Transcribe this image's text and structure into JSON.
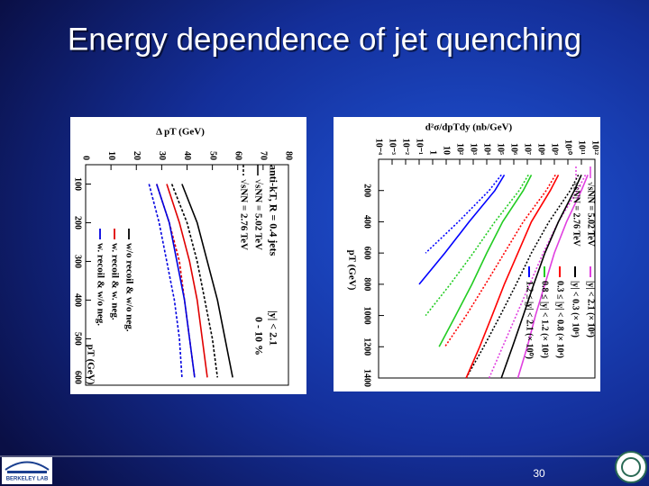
{
  "title": "Energy dependence of jet quenching",
  "page_number": 30,
  "logo_text": "BERKELEY LAB",
  "chart_data": [
    {
      "type": "line",
      "y_label": "Δ pT (GeV)",
      "x_label": "pT (GeV)",
      "annotations": [
        "anti-kT, R = 0.4 jets",
        "|y| < 2.1",
        "0 - 10 %"
      ],
      "line_styles": [
        {
          "label": "√sNN = 5.02 TeV",
          "dash": "none"
        },
        {
          "label": "√sNN = 2.76 TeV",
          "dash": "3,2"
        }
      ],
      "x": [
        100,
        200,
        300,
        400,
        500,
        600
      ],
      "xlim": [
        50,
        620
      ],
      "xticks": [
        100,
        200,
        300,
        400,
        500,
        600
      ],
      "ylim": [
        0,
        80
      ],
      "yticks": [
        0,
        10,
        20,
        30,
        40,
        50,
        60,
        70,
        80
      ],
      "series": [
        {
          "name": "w/o recoil & w/o neg.",
          "color": "#000000",
          "values": [
            38,
            44,
            48,
            52,
            55,
            58
          ],
          "dashed_values": [
            34,
            40,
            44,
            47,
            50,
            52
          ]
        },
        {
          "name": "w. recoil & w. neg.",
          "color": "#e00000",
          "values": [
            32,
            37,
            41,
            44,
            46,
            48
          ],
          "dashed_values": [
            28,
            33,
            37,
            39,
            41,
            43
          ]
        },
        {
          "name": "w. recoil & w/o neg.",
          "color": "#0000e0",
          "values": [
            28,
            33,
            36,
            39,
            41,
            43
          ],
          "dashed_values": [
            25,
            29,
            32,
            35,
            37,
            38
          ]
        }
      ]
    },
    {
      "type": "line",
      "y_label": "d²σ/dpTdy (nb/GeV)",
      "x_label": "pT (GeV)",
      "log_y": true,
      "line_styles": [
        {
          "label": "√sNN = 5.02 TeV",
          "dash": "none"
        },
        {
          "label": "√sNN = 2.76 TeV",
          "dash": "2,2"
        }
      ],
      "x": [
        100,
        200,
        400,
        600,
        800,
        1000,
        1200,
        1400
      ],
      "xlim": [
        0,
        1400
      ],
      "xticks": [
        200,
        400,
        600,
        800,
        1000,
        1200,
        1400
      ],
      "ylim": [
        0.0001,
        1000000000000
      ],
      "yticks": [
        {
          "value": 0.0001,
          "label": "10⁻⁴"
        },
        {
          "value": 0.001,
          "label": "10⁻³"
        },
        {
          "value": 0.01,
          "label": "10⁻²"
        },
        {
          "value": 0.1,
          "label": "10⁻¹"
        },
        1,
        10,
        {
          "value": 100,
          "label": "10²"
        },
        {
          "value": 1000,
          "label": "10³"
        },
        {
          "value": 10000,
          "label": "10⁴"
        },
        {
          "value": 100000,
          "label": "10⁵"
        },
        {
          "value": 1000000,
          "label": "10⁶"
        },
        {
          "value": 10000000,
          "label": "10⁷"
        },
        {
          "value": 100000000,
          "label": "10⁸"
        },
        {
          "value": 1000000000,
          "label": "10⁹"
        },
        {
          "value": 10000000000,
          "label": "10¹⁰"
        },
        {
          "value": 100000000000,
          "label": "10¹¹"
        },
        {
          "value": 1000000000000,
          "label": "10¹²"
        }
      ],
      "series": [
        {
          "name": "|y| < 2.1 (× 10⁶)",
          "color": "#e040e0",
          "values": [
            300000000000,
            100000000000,
            8000000000,
            1000000000,
            200000000,
            40000000,
            10000000,
            2000000
          ],
          "dashed_values": [
            200000000000,
            50000000000,
            2000000000,
            150000000,
            15000000,
            1500000,
            150000,
            15000
          ]
        },
        {
          "name": "|y| < 0.3 (× 10⁶)",
          "color": "#000000",
          "values": [
            100000000000,
            30000000000,
            2000000000,
            200000000,
            30000000,
            5000000,
            800000,
            120000
          ],
          "dashed_values": [
            60000000000,
            15000000000,
            400000000,
            20000000,
            1500000,
            100000,
            6000,
            300
          ]
        },
        {
          "name": "0.3 ≤ |y| < 0.8 (× 10⁴)",
          "color": "#ff0000",
          "values": [
            2000000000,
            500000000,
            20000000,
            2000000,
            200000,
            25000,
            3000,
            300
          ],
          "dashed_values": [
            1200000000,
            250000000,
            5000000,
            200000,
            8000,
            300,
            8,
            null
          ]
        },
        {
          "name": "0.8 ≤ |y| < 1.2 (× 10²)",
          "color": "#22cc22",
          "values": [
            20000000,
            5000000,
            150000,
            10000,
            800,
            50,
            3,
            null
          ],
          "dashed_values": [
            12000000,
            2500000,
            40000,
            1000,
            20,
            0.3,
            null,
            null
          ]
        },
        {
          "name": "1.2 ≤ |y| < 2.1 (× 10⁰)",
          "color": "#0000ff",
          "values": [
            200000,
            40000,
            500,
            8,
            0.1,
            null,
            null,
            null
          ],
          "dashed_values": [
            120000,
            15000,
            80,
            0.3,
            null,
            null,
            null,
            null
          ]
        }
      ]
    }
  ]
}
